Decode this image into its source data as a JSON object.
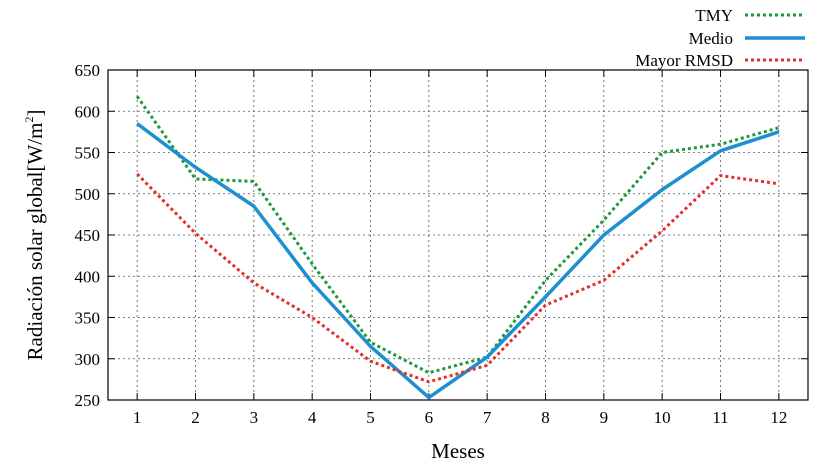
{
  "chart_data": {
    "type": "line",
    "title": "",
    "xlabel": "Meses",
    "ylabel": "Radiación solar global[W/m",
    "ylabel_sup": "2",
    "ylabel_end": "]",
    "x": [
      1,
      2,
      3,
      4,
      5,
      6,
      7,
      8,
      9,
      10,
      11,
      12
    ],
    "xlim": [
      0.5,
      12.5
    ],
    "ylim": [
      250,
      650
    ],
    "yticks": [
      250,
      300,
      350,
      400,
      450,
      500,
      550,
      600,
      650
    ],
    "grid": true,
    "legend_position": "top-right, outside",
    "series": [
      {
        "name": "TMY",
        "color": "#1a9a3a",
        "style": "dotted",
        "values": [
          618,
          518,
          515,
          415,
          320,
          283,
          302,
          395,
          468,
          550,
          560,
          580
        ]
      },
      {
        "name": "Medio",
        "color": "#1e90d0",
        "style": "solid",
        "values": [
          585,
          532,
          485,
          392,
          315,
          253,
          302,
          375,
          450,
          505,
          552,
          575
        ]
      },
      {
        "name": "Mayor RMSD",
        "color": "#e03030",
        "style": "dotted",
        "values": [
          524,
          452,
          392,
          350,
          297,
          272,
          292,
          365,
          395,
          455,
          522,
          512
        ]
      }
    ]
  }
}
